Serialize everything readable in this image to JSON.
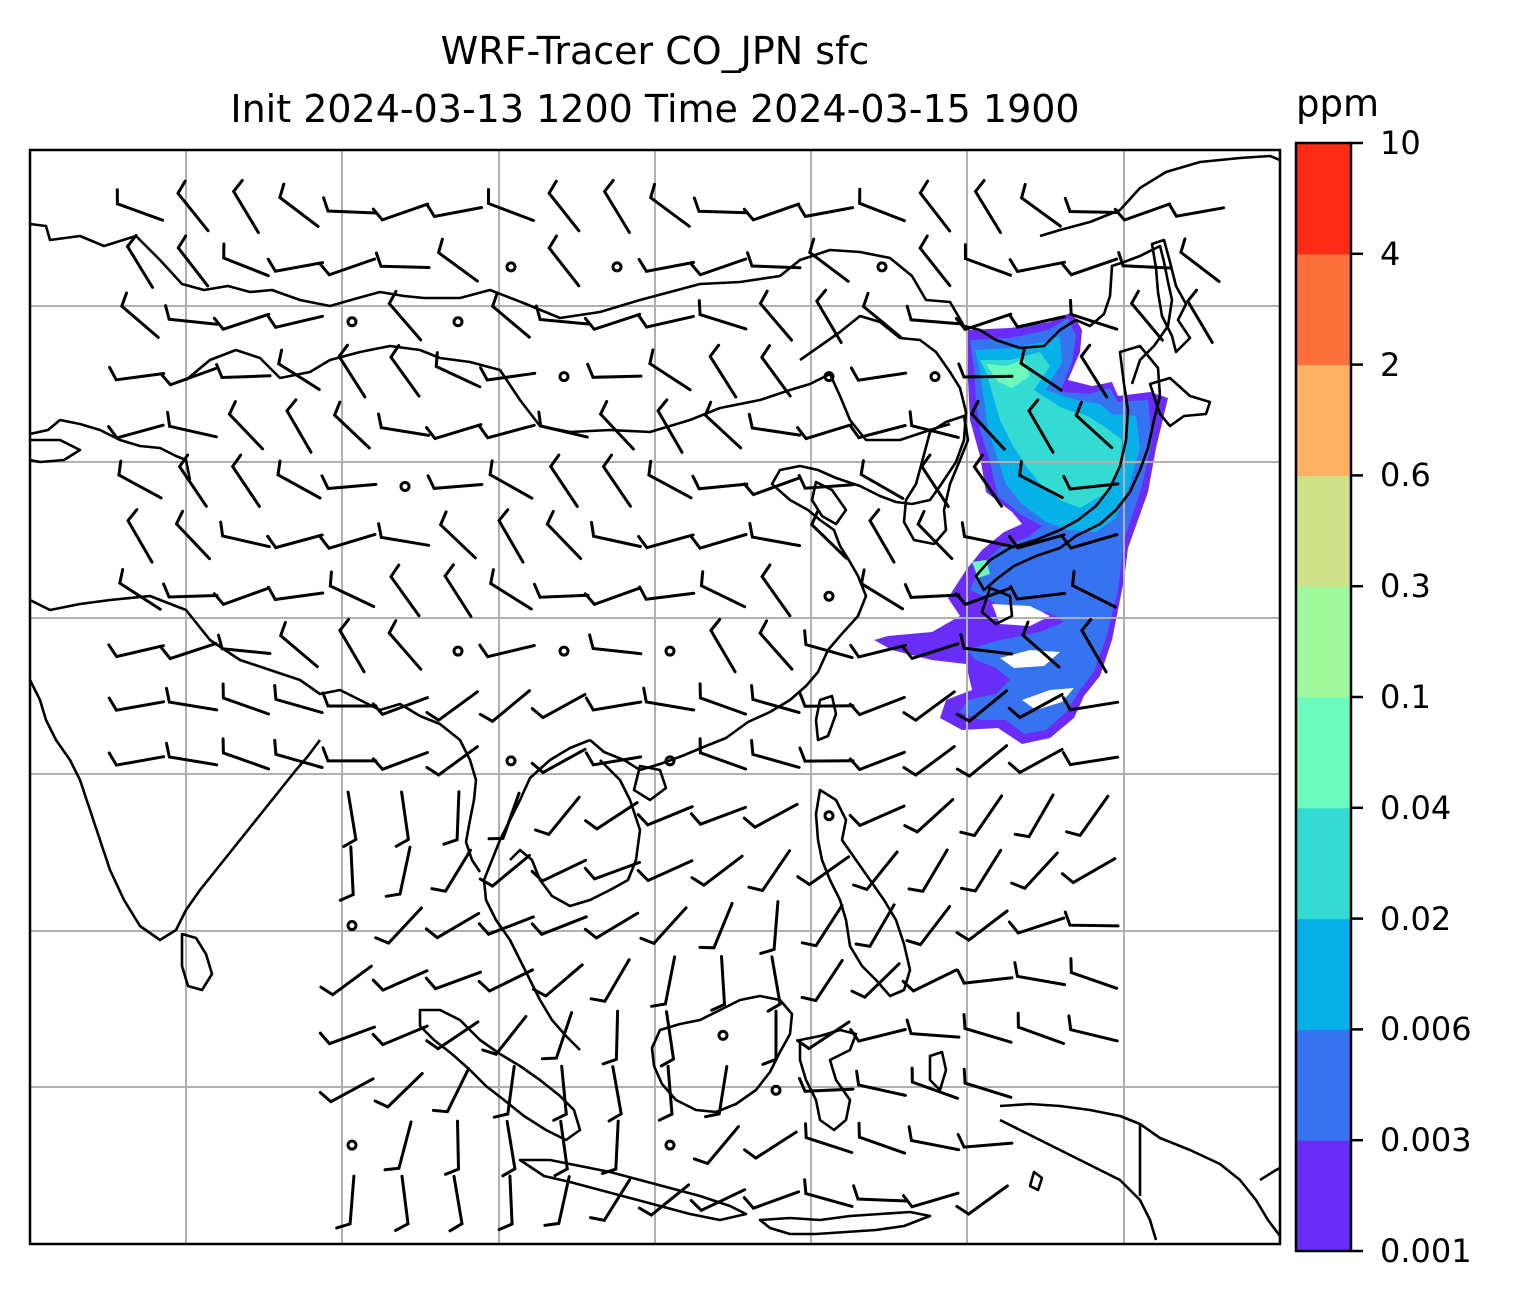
{
  "title": {
    "line1": "WRF-Tracer CO_JPN sfc",
    "line2": "Init 2024-03-13 1200 Time 2024-03-15 1900"
  },
  "colorbar": {
    "unit": "ppm",
    "levels": [
      "0.001",
      "0.003",
      "0.006",
      "0.02",
      "0.04",
      "0.1",
      "0.3",
      "0.6",
      "2",
      "4",
      "10"
    ],
    "colors": [
      "#6a2cf7",
      "#3673f1",
      "#06b1e9",
      "#33dbd2",
      "#6bfbbd",
      "#9ef99c",
      "#cfe186",
      "#fdb161",
      "#fd703c",
      "#fc2b16"
    ]
  },
  "colors": {
    "coast": "#000000",
    "grid": "#b0b0b0",
    "barb": "#000000"
  }
}
